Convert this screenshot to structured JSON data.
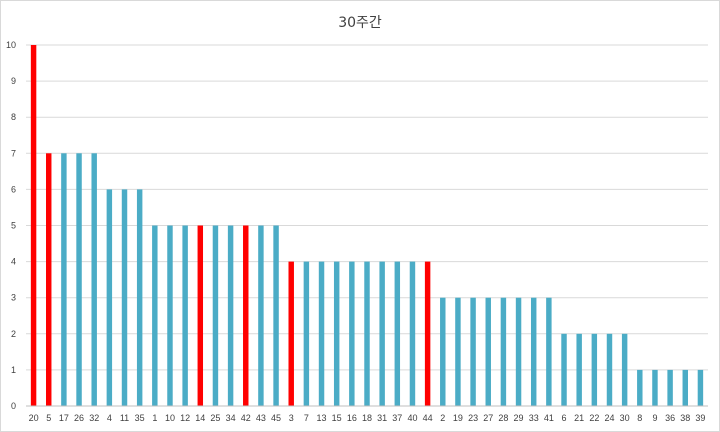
{
  "chart_data": {
    "type": "bar",
    "title": "30주간",
    "xlabel": "",
    "ylabel": "",
    "ylim": [
      0,
      10
    ],
    "yticks": [
      0,
      1,
      2,
      3,
      4,
      5,
      6,
      7,
      8,
      9,
      10
    ],
    "grid": true,
    "legend": "none",
    "categories": [
      "20",
      "5",
      "17",
      "26",
      "32",
      "4",
      "11",
      "35",
      "1",
      "10",
      "12",
      "14",
      "25",
      "34",
      "42",
      "43",
      "45",
      "3",
      "7",
      "13",
      "15",
      "16",
      "18",
      "31",
      "37",
      "40",
      "44",
      "2",
      "19",
      "23",
      "27",
      "28",
      "29",
      "33",
      "41",
      "6",
      "21",
      "22",
      "24",
      "30",
      "8",
      "9",
      "36",
      "38",
      "39"
    ],
    "values": [
      10,
      7,
      7,
      7,
      7,
      6,
      6,
      6,
      5,
      5,
      5,
      5,
      5,
      5,
      5,
      5,
      5,
      4,
      4,
      4,
      4,
      4,
      4,
      4,
      4,
      4,
      4,
      3,
      3,
      3,
      3,
      3,
      3,
      3,
      3,
      2,
      2,
      2,
      2,
      2,
      1,
      1,
      1,
      1,
      1
    ],
    "highlighted": [
      "20",
      "5",
      "14",
      "42",
      "3",
      "44"
    ],
    "colors": {
      "bar": "#4bacc6",
      "bar_highlight": "#ff0000",
      "grid": "#d9d9d9",
      "axis": "#bfbfbf"
    }
  }
}
